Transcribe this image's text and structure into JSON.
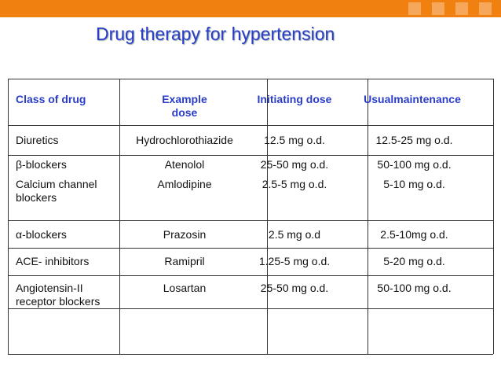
{
  "header": {
    "title": "Drug therapy for hypertension"
  },
  "table": {
    "columns": [
      "Class of drug",
      "Example dose",
      "Initiating dose",
      "Usualmaintenance"
    ],
    "rows": [
      [
        "Diuretics",
        "Hydrochlorothiazide",
        "12.5 mg o.d.",
        "12.5-25 mg o.d."
      ],
      [
        "β-blockers",
        "Atenolol",
        "25-50 mg o.d.",
        "50-100 mg o.d."
      ],
      [
        "Calcium channel blockers",
        "Amlodipine",
        "2.5-5 mg o.d.",
        "5-10 mg o.d."
      ],
      [
        "α-blockers",
        "Prazosin",
        "2.5 mg o.d",
        "2.5-10mg o.d."
      ],
      [
        "ACE- inhibitors",
        "Ramipril",
        "1.25-5 mg o.d.",
        "5-20 mg o.d."
      ],
      [
        "Angiotensin-II receptor blockers",
        "Losartan",
        "25-50 mg o.d.",
        "50-100 mg o.d."
      ]
    ]
  }
}
